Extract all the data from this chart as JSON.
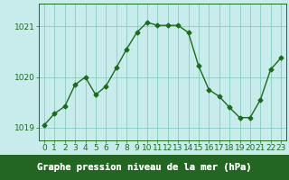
{
  "x": [
    0,
    1,
    2,
    3,
    4,
    5,
    6,
    7,
    8,
    9,
    10,
    11,
    12,
    13,
    14,
    15,
    16,
    17,
    18,
    19,
    20,
    21,
    22,
    23
  ],
  "y": [
    1019.05,
    1019.28,
    1019.42,
    1019.85,
    1020.0,
    1019.65,
    1019.82,
    1020.18,
    1020.55,
    1020.88,
    1021.08,
    1021.02,
    1021.02,
    1021.02,
    1020.88,
    1020.22,
    1019.75,
    1019.62,
    1019.4,
    1019.2,
    1019.2,
    1019.55,
    1020.15,
    1020.38
  ],
  "line_color": "#1a6b1a",
  "marker": "D",
  "marker_size": 2.5,
  "bg_color": "#c8ecec",
  "grid_color": "#88ccbb",
  "bottom_bar_color": "#1a6b1a",
  "title": "Graphe pression niveau de la mer (hPa)",
  "xlim": [
    -0.5,
    23.5
  ],
  "ylim": [
    1018.75,
    1021.45
  ],
  "yticks": [
    1019,
    1020,
    1021
  ],
  "xticks": [
    0,
    1,
    2,
    3,
    4,
    5,
    6,
    7,
    8,
    9,
    10,
    11,
    12,
    13,
    14,
    15,
    16,
    17,
    18,
    19,
    20,
    21,
    22,
    23
  ],
  "title_fontsize": 7.5,
  "tick_fontsize": 6.5,
  "xtick_color": "#1a6b1a",
  "ytick_color": "#1a6b1a",
  "spine_color": "#1a6b1a",
  "linewidth": 1.0,
  "label_area_color": "#226622"
}
